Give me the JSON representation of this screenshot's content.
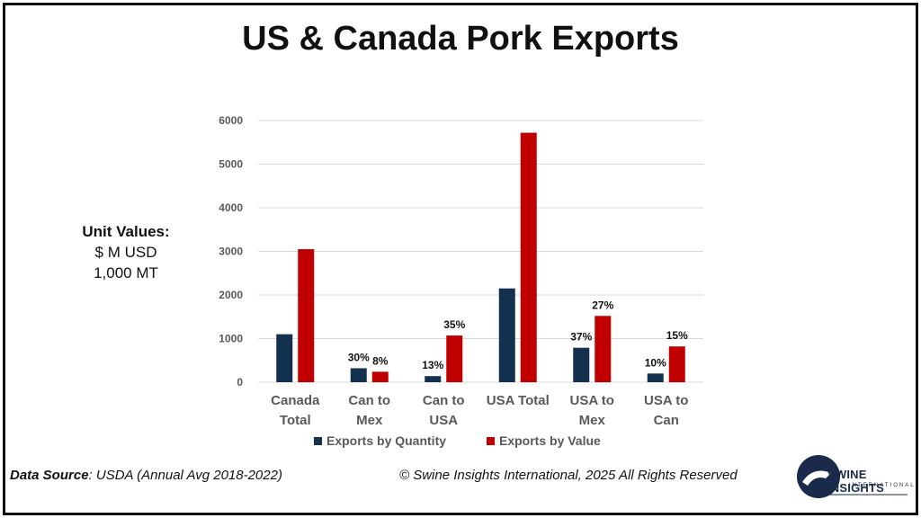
{
  "title": "US & Canada Pork Exports",
  "unit_values": {
    "heading": "Unit Values:",
    "line1": "$ M USD",
    "line2": "1,000 MT"
  },
  "footer": {
    "source_label": "Data Source",
    "source_text": ": USDA (Annual Avg 2018-2022)",
    "copyright": "© Swine Insights International, 2025 All Rights Reserved"
  },
  "logo": {
    "name": "SWINE INSIGHTS",
    "sub": "INTERNATIONAL"
  },
  "colors": {
    "quantity": "#14304f",
    "value": "#c00000",
    "grid": "#d9d9d9",
    "axis_text": "#595959"
  },
  "chart_data": {
    "type": "bar",
    "categories": [
      [
        "Canada",
        "Total"
      ],
      [
        "Can to",
        "Mex"
      ],
      [
        "Can to",
        "USA"
      ],
      [
        "USA Total"
      ],
      [
        "USA to",
        "Mex"
      ],
      [
        "USA to",
        "Can"
      ]
    ],
    "series": [
      {
        "name": "Exports by Quantity",
        "values": [
          1100,
          320,
          140,
          2150,
          790,
          200
        ],
        "labels": [
          "",
          "30%",
          "13%",
          "",
          "37%",
          "10%"
        ]
      },
      {
        "name": "Exports by Value",
        "values": [
          3050,
          240,
          1070,
          5720,
          1520,
          820
        ],
        "labels": [
          "",
          "8%",
          "35%",
          "",
          "27%",
          "15%"
        ]
      }
    ],
    "ylim": [
      0,
      6000
    ],
    "yticks": [
      0,
      1000,
      2000,
      3000,
      4000,
      5000,
      6000
    ],
    "grid": true,
    "legend": "bottom"
  }
}
